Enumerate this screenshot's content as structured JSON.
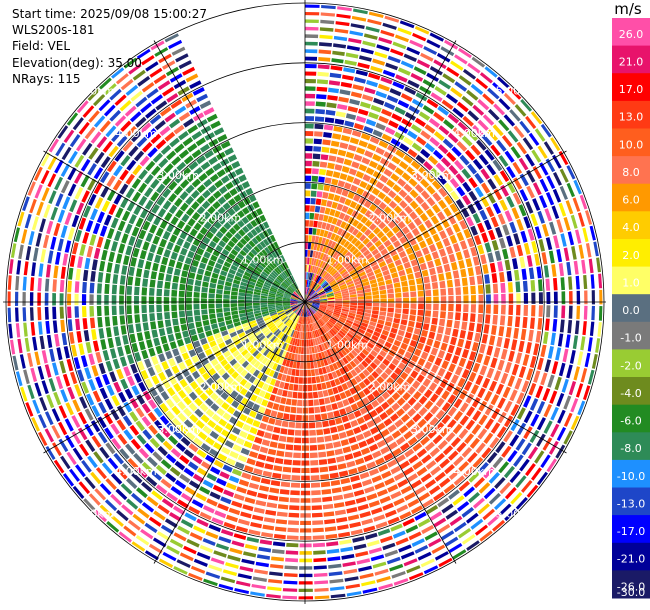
{
  "info": {
    "start_time": "Start time: 2025/09/08 15:00:27",
    "instrument": "WLS200s-181",
    "field": "Field: VEL",
    "elevation": "Elevation(deg): 35.00",
    "nrays": "NRays: 115"
  },
  "chart_data": {
    "type": "heatmap",
    "projection": "polar-ppi",
    "field": "VEL",
    "units": "m/s",
    "elevation_deg": 35.0,
    "nrays": 115,
    "max_range_km": 5.0,
    "range_ring_labels": [
      "1.00km",
      "2.00km",
      "3.00km",
      "4.00km",
      "5.00km"
    ],
    "range_rings_km": [
      1,
      2,
      3,
      4,
      5
    ],
    "spokes_deg": [
      0,
      30,
      60,
      90,
      120,
      150,
      180,
      210,
      240,
      270,
      300,
      330
    ],
    "missing_sector_deg": [
      335,
      360
    ],
    "colorbar": {
      "title": "m/s",
      "tick_labels": [
        "26.0",
        "21.0",
        "17.0",
        "13.0",
        "10.0",
        "8.0",
        "6.0",
        "4.0",
        "2.0",
        "1.0",
        "0.0",
        "-1.0",
        "-2.0",
        "-4.0",
        "-6.0",
        "-8.0",
        "-10.0",
        "-13.0",
        "-17.0",
        "-21.0",
        "-26.0",
        "-30.0"
      ],
      "colors": [
        "#ff4fa8",
        "#e8136b",
        "#ff0000",
        "#ff3a14",
        "#ff5e1e",
        "#ff7350",
        "#ff9900",
        "#ffcc00",
        "#ffee00",
        "#ffff66",
        "#5a6f80",
        "#7a7a7a",
        "#99cc33",
        "#6e8b1e",
        "#228b22",
        "#2e8b57",
        "#1e90ff",
        "#1e46c8",
        "#0000ff",
        "#000099",
        "#1a1a66"
      ]
    },
    "velocity_pattern": [
      {
        "azimuth_deg": [
          10,
          90
        ],
        "range_km": [
          0.5,
          3.0
        ],
        "vel_ms": [
          4,
          8
        ]
      },
      {
        "azimuth_deg": [
          90,
          200
        ],
        "range_km": [
          0.2,
          4.0
        ],
        "vel_ms": [
          6,
          12
        ]
      },
      {
        "azimuth_deg": [
          200,
          250
        ],
        "range_km": [
          0.3,
          3.0
        ],
        "vel_ms": [
          -1,
          2
        ]
      },
      {
        "azimuth_deg": [
          250,
          335
        ],
        "range_km": [
          0.2,
          3.5
        ],
        "vel_ms": [
          -10,
          -6
        ]
      }
    ]
  }
}
